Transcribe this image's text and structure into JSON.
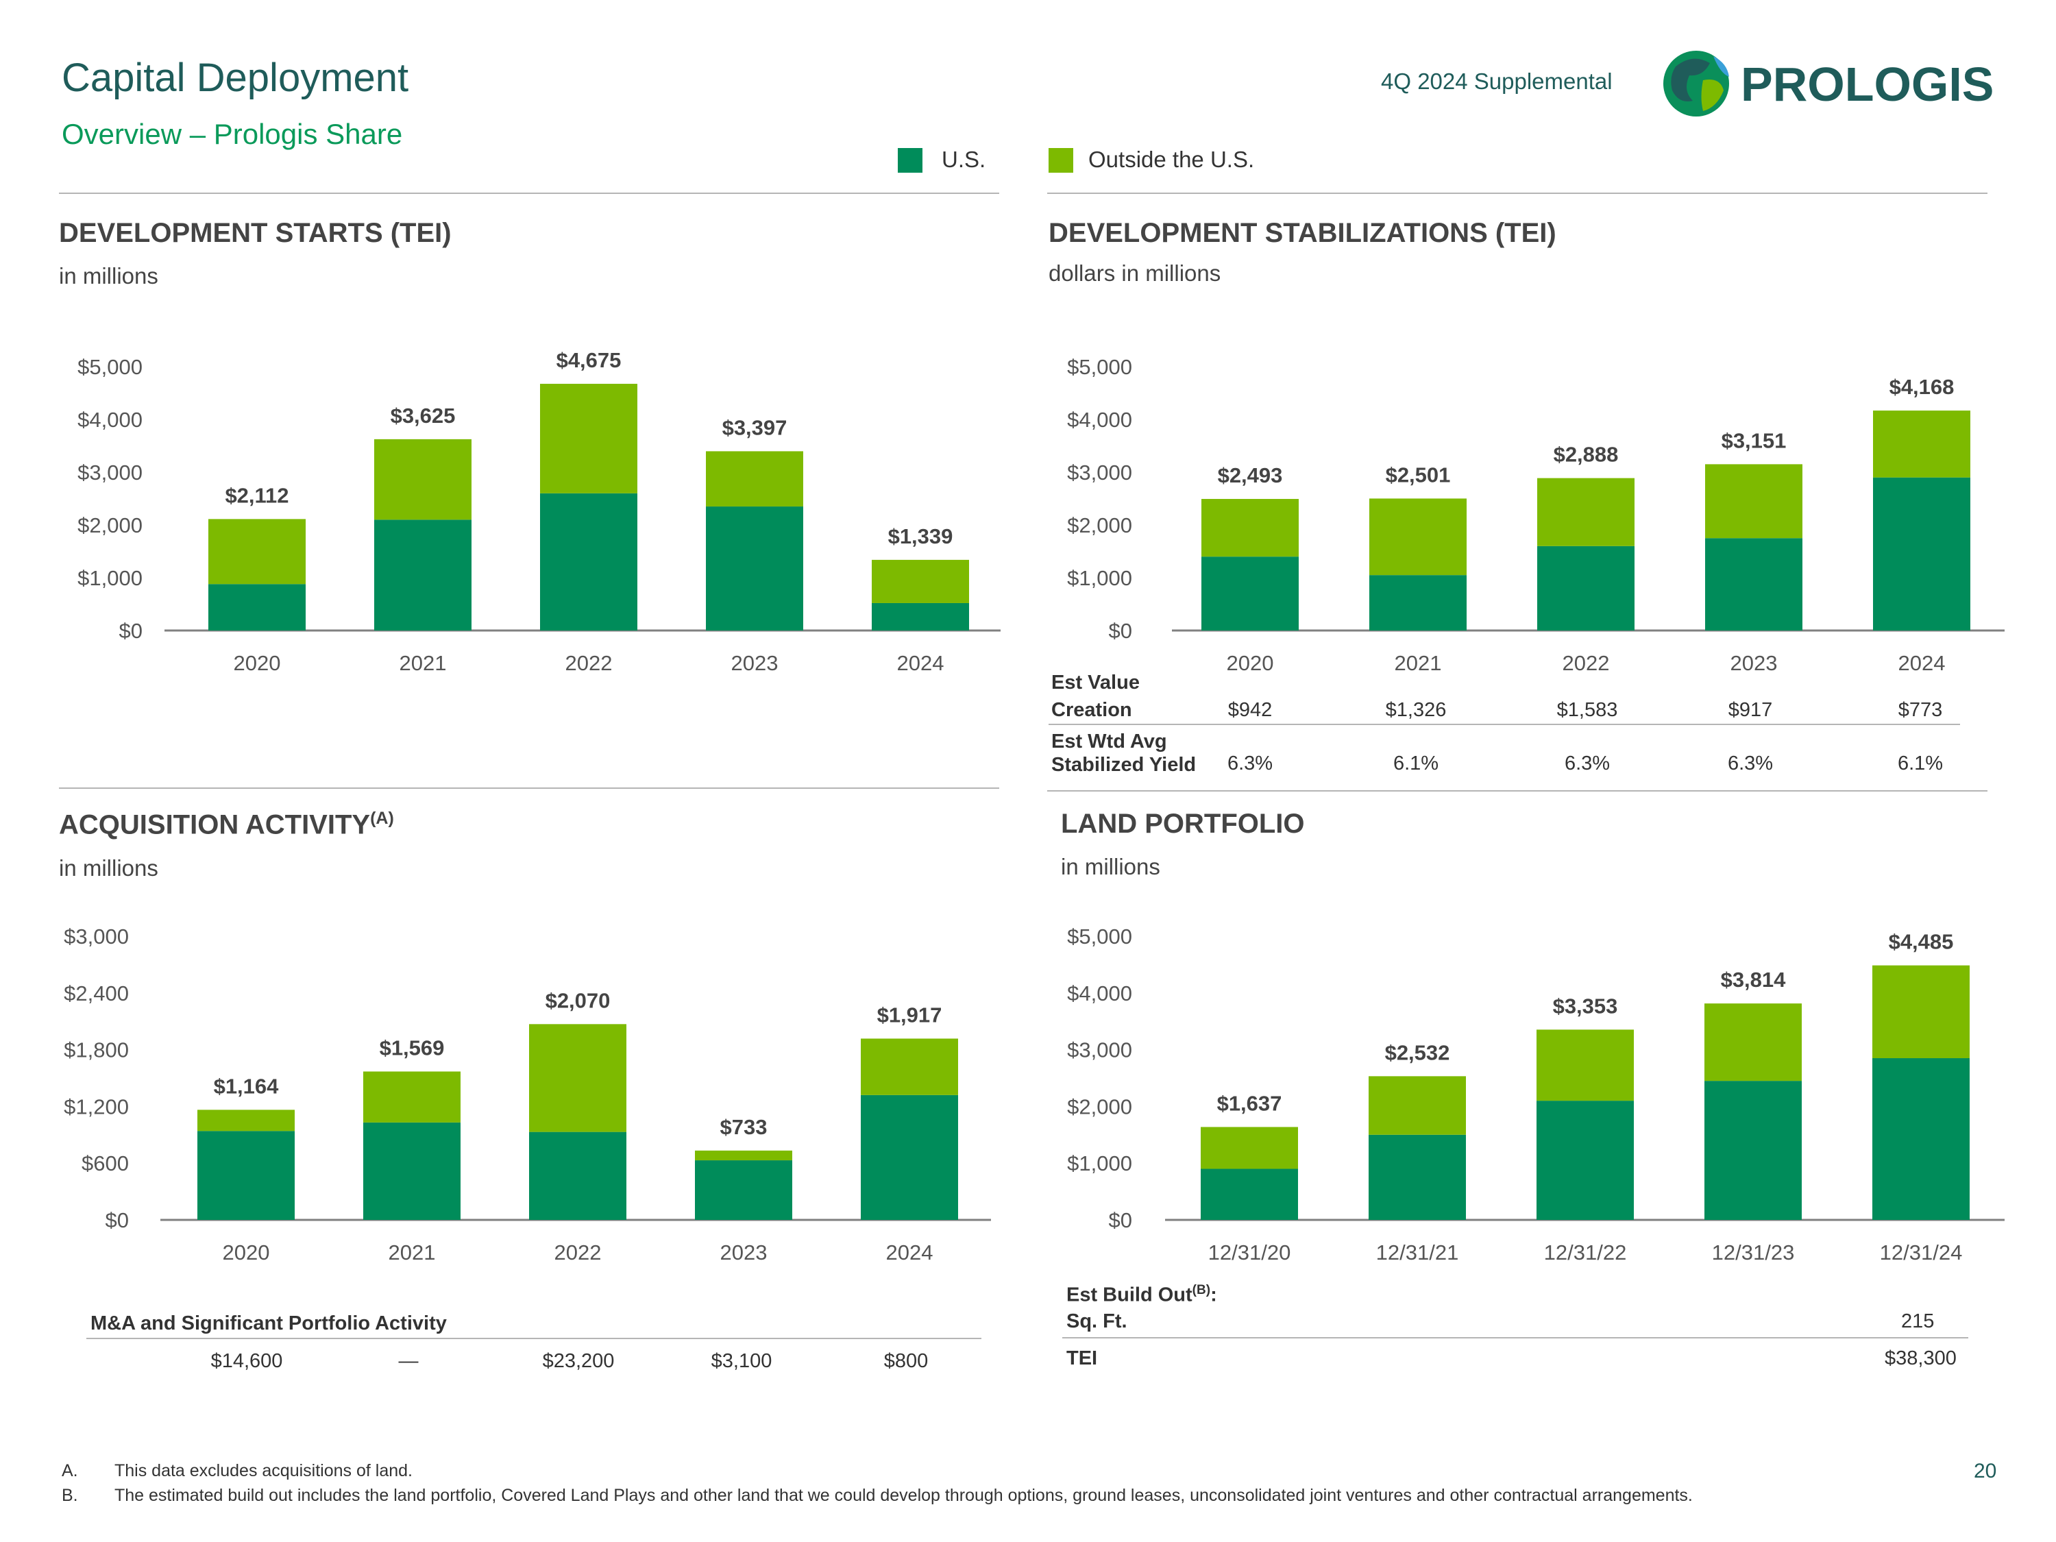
{
  "header": {
    "title": "Capital Deployment",
    "subtitle": "Overview – Prologis Share",
    "supplemental": "4Q 2024 Supplemental",
    "logo_text": "PROLOGIS"
  },
  "legend": {
    "us": {
      "label": "U.S.",
      "color": "#008C5A"
    },
    "outside": {
      "label": "Outside the U.S.",
      "color": "#7DBA00"
    }
  },
  "sections": {
    "starts": {
      "title": "DEVELOPMENT STARTS (TEI)",
      "subtitle": "in millions"
    },
    "stabilizations": {
      "title": "DEVELOPMENT STABILIZATIONS (TEI)",
      "subtitle": "dollars in millions"
    },
    "acquisitions": {
      "title": "ACQUISITION ACTIVITY",
      "title_sup": "(A)",
      "subtitle": "in millions"
    },
    "land": {
      "title": "LAND PORTFOLIO",
      "subtitle": "in millions"
    }
  },
  "chart_data": [
    {
      "id": "starts",
      "type": "bar",
      "stacked": true,
      "categories": [
        "2020",
        "2021",
        "2022",
        "2023",
        "2024"
      ],
      "series": [
        {
          "name": "U.S.",
          "values": [
            880,
            2100,
            2600,
            2350,
            520
          ]
        },
        {
          "name": "Outside the U.S.",
          "values": [
            1232,
            1525,
            2075,
            1047,
            819
          ]
        }
      ],
      "totals": [
        2112,
        3625,
        4675,
        3397,
        1339
      ],
      "total_labels": [
        "$2,112",
        "$3,625",
        "$4,675",
        "$3,397",
        "$1,339"
      ],
      "yticks": [
        "$0",
        "$1,000",
        "$2,000",
        "$3,000",
        "$4,000",
        "$5,000"
      ],
      "ylim": [
        0,
        5000
      ]
    },
    {
      "id": "stabilizations",
      "type": "bar",
      "stacked": true,
      "categories": [
        "2020",
        "2021",
        "2022",
        "2023",
        "2024"
      ],
      "series": [
        {
          "name": "U.S.",
          "values": [
            1400,
            1050,
            1600,
            1750,
            2900
          ]
        },
        {
          "name": "Outside the U.S.",
          "values": [
            1093,
            1451,
            1288,
            1401,
            1268
          ]
        }
      ],
      "totals": [
        2493,
        2501,
        2888,
        3151,
        4168
      ],
      "total_labels": [
        "$2,493",
        "$2,501",
        "$2,888",
        "$3,151",
        "$4,168"
      ],
      "yticks": [
        "$0",
        "$1,000",
        "$2,000",
        "$3,000",
        "$4,000",
        "$5,000"
      ],
      "ylim": [
        0,
        5000
      ]
    },
    {
      "id": "acquisitions",
      "type": "bar",
      "stacked": true,
      "categories": [
        "2020",
        "2021",
        "2022",
        "2023",
        "2024"
      ],
      "series": [
        {
          "name": "U.S.",
          "values": [
            940,
            1030,
            930,
            630,
            1320
          ]
        },
        {
          "name": "Outside the U.S.",
          "values": [
            224,
            539,
            1140,
            103,
            597
          ]
        }
      ],
      "totals": [
        1164,
        1569,
        2070,
        733,
        1917
      ],
      "total_labels": [
        "$1,164",
        "$1,569",
        "$2,070",
        "$733",
        "$1,917"
      ],
      "yticks": [
        "$0",
        "$600",
        "$1,200",
        "$1,800",
        "$2,400",
        "$3,000"
      ],
      "ylim": [
        0,
        3000
      ]
    },
    {
      "id": "land",
      "type": "bar",
      "stacked": true,
      "categories": [
        "12/31/20",
        "12/31/21",
        "12/31/22",
        "12/31/23",
        "12/31/24"
      ],
      "series": [
        {
          "name": "U.S.",
          "values": [
            900,
            1500,
            2100,
            2450,
            2850
          ]
        },
        {
          "name": "Outside the U.S.",
          "values": [
            737,
            1032,
            1253,
            1364,
            1635
          ]
        }
      ],
      "totals": [
        1637,
        2532,
        3353,
        3814,
        4485
      ],
      "total_labels": [
        "$1,637",
        "$2,532",
        "$3,353",
        "$3,814",
        "$4,485"
      ],
      "yticks": [
        "$0",
        "$1,000",
        "$2,000",
        "$3,000",
        "$4,000",
        "$5,000"
      ],
      "ylim": [
        0,
        5000
      ]
    }
  ],
  "stab_table": {
    "row1_label_1": "Est Value",
    "row1_label_2": "Creation",
    "row1_values": [
      "$942",
      "$1,326",
      "$1,583",
      "$917",
      "$773"
    ],
    "row2_label_1": "Est Wtd Avg",
    "row2_label_2": "Stabilized Yield",
    "row2_values": [
      "6.3%",
      "6.1%",
      "6.3%",
      "6.3%",
      "6.1%"
    ]
  },
  "acq_table": {
    "label": "M&A and Significant Portfolio Activity",
    "values": [
      "$14,600",
      "—",
      "$23,200",
      "$3,100",
      "$800"
    ]
  },
  "land_table": {
    "label_1": "Est Build Out",
    "label_1_sup": "(B)",
    "label_1_tail": ":",
    "label_2": "Sq. Ft.",
    "sqft": "215",
    "label_3": "TEI",
    "tei": "$38,300"
  },
  "footnotes": [
    {
      "marker": "A.",
      "text": "This data excludes acquisitions of land."
    },
    {
      "marker": "B.",
      "text": "The estimated build out includes the land portfolio, Covered Land Plays and other land that we could develop through options, ground leases, unconsolidated joint ventures and other contractual arrangements."
    }
  ],
  "page_number": "20"
}
